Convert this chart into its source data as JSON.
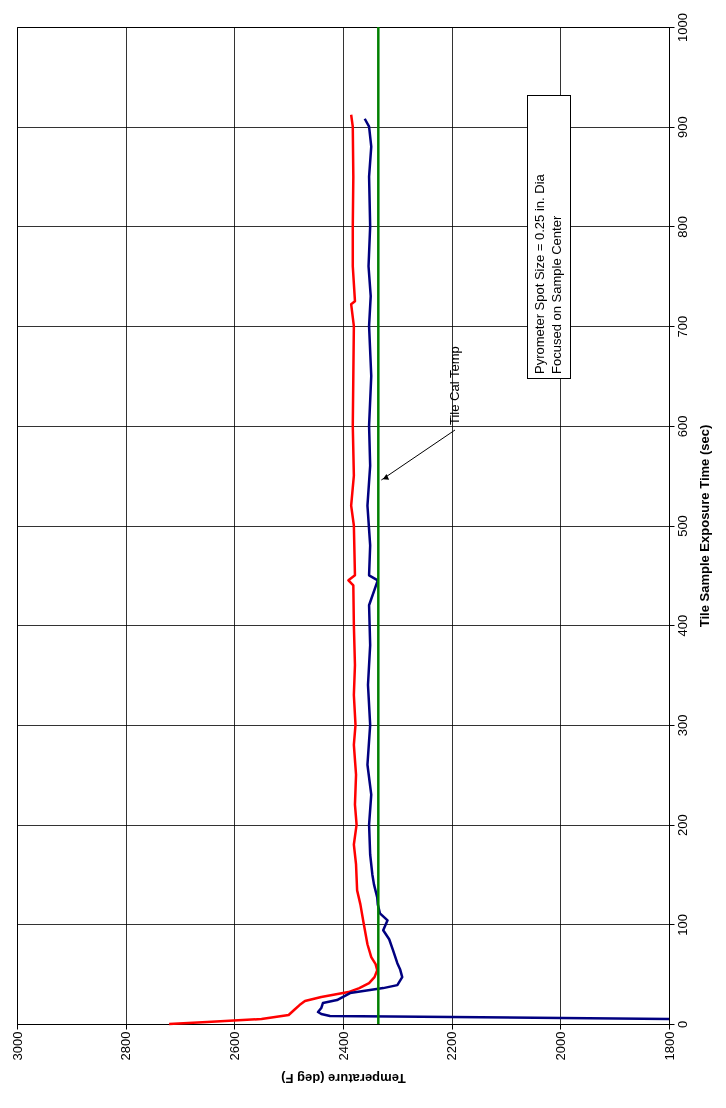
{
  "chart_data": {
    "type": "line",
    "xlabel": "Temperature (deg F)",
    "ylabel": "Tile Sample Exposure Time (sec)",
    "xlim": [
      3000,
      1800
    ],
    "xticks": [
      3000,
      2800,
      2600,
      2400,
      2200,
      2000,
      1800
    ],
    "ylim": [
      0,
      1000
    ],
    "yticks": [
      0,
      100,
      200,
      300,
      400,
      500,
      600,
      700,
      800,
      900,
      1000
    ],
    "grid": true,
    "legend": false,
    "marker": "none",
    "line_style": "solid",
    "series": [
      {
        "color": "#ff0000",
        "x": [
          2720,
          2650,
          2550,
          2500,
          2490,
          2480,
          2470,
          2440,
          2390,
          2370,
          2352,
          2342,
          2337,
          2340,
          2348,
          2355,
          2362,
          2368,
          2374,
          2376,
          2380,
          2375,
          2378,
          2376,
          2380,
          2377,
          2380,
          2378,
          2380,
          2381,
          2390,
          2378,
          2380,
          2385,
          2380,
          2382,
          2381,
          2380,
          2385,
          2378,
          2382,
          2382,
          2381,
          2382,
          2385
        ],
        "values": [
          0,
          2,
          5,
          9,
          14,
          19,
          23,
          27,
          32,
          36,
          41,
          47,
          54,
          60,
          67,
          80,
          101,
          120,
          134,
          160,
          180,
          200,
          220,
          250,
          280,
          300,
          330,
          360,
          400,
          440,
          445,
          450,
          500,
          520,
          550,
          600,
          650,
          700,
          722,
          725,
          760,
          800,
          850,
          900,
          912
        ]
      },
      {
        "color": "#000080",
        "x": [
          1800,
          2200,
          2424,
          2440,
          2446,
          2440,
          2437,
          2411,
          2387,
          2326,
          2300,
          2291,
          2295,
          2300,
          2308,
          2315,
          2326,
          2318,
          2332,
          2336,
          2337,
          2343,
          2346,
          2350,
          2352,
          2348,
          2355,
          2350,
          2354,
          2350,
          2352,
          2336,
          2352,
          2350,
          2355,
          2350,
          2352,
          2348,
          2352,
          2349,
          2353,
          2350,
          2352,
          2348,
          2352,
          2360
        ],
        "values": [
          5,
          7,
          8,
          10,
          12,
          16,
          21,
          24,
          31,
          36,
          39,
          47,
          55,
          61,
          74,
          85,
          94,
          104,
          111,
          120,
          127,
          140,
          150,
          170,
          200,
          230,
          260,
          300,
          340,
          380,
          420,
          445,
          450,
          480,
          520,
          560,
          600,
          650,
          700,
          730,
          760,
          800,
          850,
          880,
          900,
          908
        ]
      }
    ],
    "ref_lines": [
      {
        "axis": "x",
        "value": 2335,
        "label": "Tile Cal Temp",
        "color": "#008000"
      }
    ],
    "annotations": [
      "Pyrometer Spot Size = 0.25 in. Dia\nFocused on Sample Center"
    ]
  }
}
